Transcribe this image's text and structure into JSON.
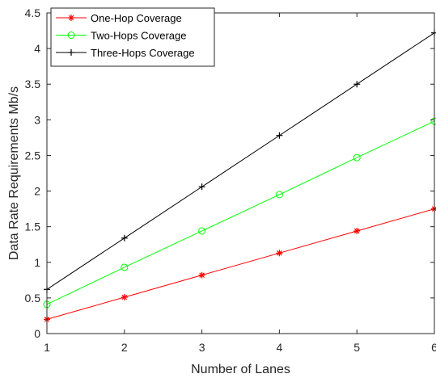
{
  "chart_data": {
    "type": "line",
    "title": "",
    "xlabel": "Number of Lanes",
    "ylabel": "Data Rate Requirements Mb/s",
    "x": [
      1,
      2,
      3,
      4,
      5,
      6
    ],
    "xlim": [
      1,
      6
    ],
    "ylim": [
      0,
      4.5
    ],
    "xticks": [
      "1",
      "2",
      "3",
      "4",
      "5",
      "6"
    ],
    "yticks": [
      "0",
      "0.5",
      "1",
      "1.5",
      "2",
      "2.5",
      "3",
      "3.5",
      "4",
      "4.5"
    ],
    "grid": false,
    "legend_position": "top-left",
    "series": [
      {
        "name": "One-Hop Coverage",
        "color": "#ff0000",
        "marker": "asterisk",
        "values": [
          0.2,
          0.51,
          0.82,
          1.13,
          1.44,
          1.75
        ]
      },
      {
        "name": "Two-Hops Coverage",
        "color": "#00ff00",
        "marker": "circle",
        "values": [
          0.41,
          0.93,
          1.44,
          1.95,
          2.47,
          2.98
        ]
      },
      {
        "name": "Three-Hops Coverage",
        "color": "#000000",
        "marker": "plus",
        "values": [
          0.62,
          1.34,
          2.06,
          2.78,
          3.5,
          4.22
        ]
      }
    ]
  }
}
